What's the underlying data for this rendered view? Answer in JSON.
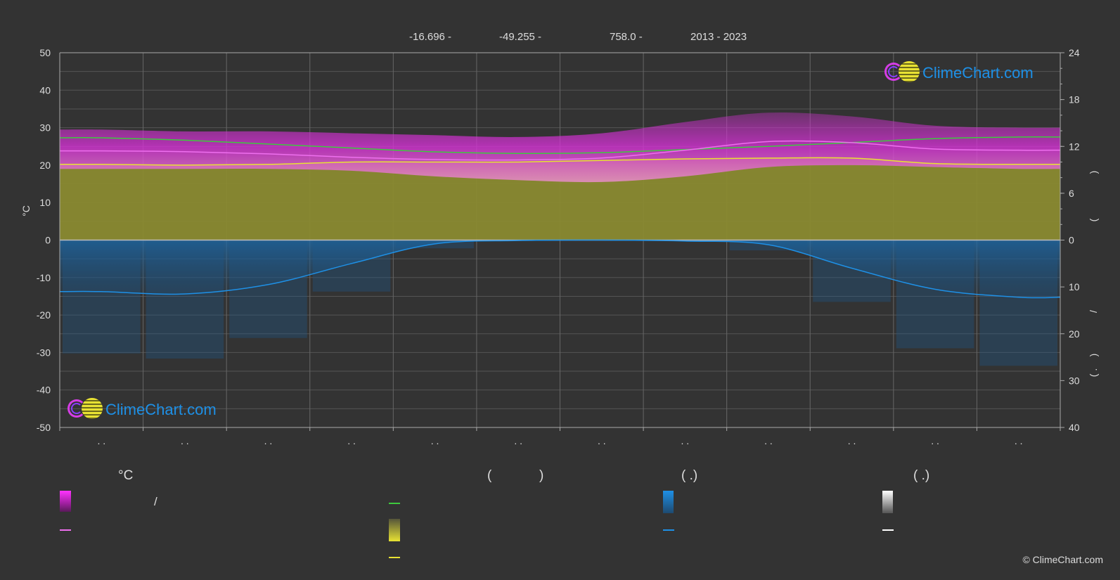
{
  "header": {
    "latitude": "-16.696 -",
    "longitude": "-49.255 -",
    "elevation": "758.0 -",
    "years": "2013 - 2023"
  },
  "watermark_text": "ClimeChart.com",
  "copyright": "© ClimeChart.com",
  "colors": {
    "background": "#333333",
    "daylight_green": "#3ec93e",
    "max_temp_band": "#d632d6",
    "mean_temp_line": "#ee6fee",
    "sunshine_yellow": "#e8e233",
    "precip_blue": "#1e90e6",
    "snow_white": "#ffffff"
  },
  "chart_data": {
    "type": "line",
    "left_axis": {
      "label": "°C",
      "ticks": [
        "50",
        "40",
        "30",
        "20",
        "10",
        "0",
        "-10",
        "-20",
        "-30",
        "-40",
        "-50"
      ],
      "ylim": [
        -50,
        50
      ]
    },
    "right_axis_top": {
      "label": ")",
      "ticks": [
        "24",
        "18",
        "12",
        "6",
        "0"
      ],
      "ylim": [
        0,
        24
      ]
    },
    "right_axis_bottom": {
      "label": "/",
      "ticks": [
        "10",
        "20",
        "30",
        "40"
      ],
      "ylim": [
        0,
        40
      ]
    },
    "right_axis_labels": [
      ")",
      "(",
      "/",
      ")",
      "( ."
    ],
    "x_tick_labels": [
      ". .",
      ". .",
      ". .",
      ". .",
      ". .",
      ". .",
      ". .",
      ". .",
      ". .",
      ". .",
      ". .",
      ". ."
    ],
    "x_months": [
      1,
      2,
      3,
      4,
      5,
      6,
      7,
      8,
      9,
      10,
      11,
      12
    ],
    "grid": true,
    "series": [
      {
        "key": "daylight",
        "axis": "hours",
        "values": [
          13.1,
          12.8,
          12.3,
          11.8,
          11.3,
          11.1,
          11.2,
          11.6,
          12.0,
          12.5,
          13.0,
          13.2
        ]
      },
      {
        "key": "mean_temp",
        "axis": "temp",
        "values": [
          23.8,
          23.6,
          23.0,
          22.1,
          21.5,
          21.4,
          21.9,
          24.0,
          26.3,
          26.0,
          24.3,
          24.0
        ]
      },
      {
        "key": "sunshine",
        "axis": "hours",
        "values": [
          9.7,
          9.6,
          9.7,
          10.0,
          10.0,
          10.0,
          10.2,
          10.4,
          10.5,
          10.5,
          9.8,
          9.7
        ]
      },
      {
        "key": "precipitation",
        "axis": "precip",
        "values": [
          11.0,
          11.5,
          9.5,
          5.0,
          0.8,
          0.1,
          0.0,
          0.2,
          1.0,
          6.0,
          10.5,
          12.2
        ]
      },
      {
        "key": "max_temp_band_top",
        "axis": "temp",
        "values": [
          29.5,
          29.0,
          29.0,
          28.5,
          28.0,
          27.5,
          28.5,
          31.5,
          34.0,
          33.0,
          30.5,
          30.0
        ]
      },
      {
        "key": "max_temp_band_bottom",
        "axis": "temp",
        "values": [
          19.0,
          19.0,
          19.0,
          18.5,
          17.0,
          16.0,
          15.5,
          17.0,
          19.5,
          20.0,
          19.5,
          19.0
        ]
      }
    ]
  },
  "legend": {
    "headers": [
      "°C",
      "(",
      ")",
      "( .)",
      "( .)"
    ],
    "max_temp_label": "/"
  }
}
